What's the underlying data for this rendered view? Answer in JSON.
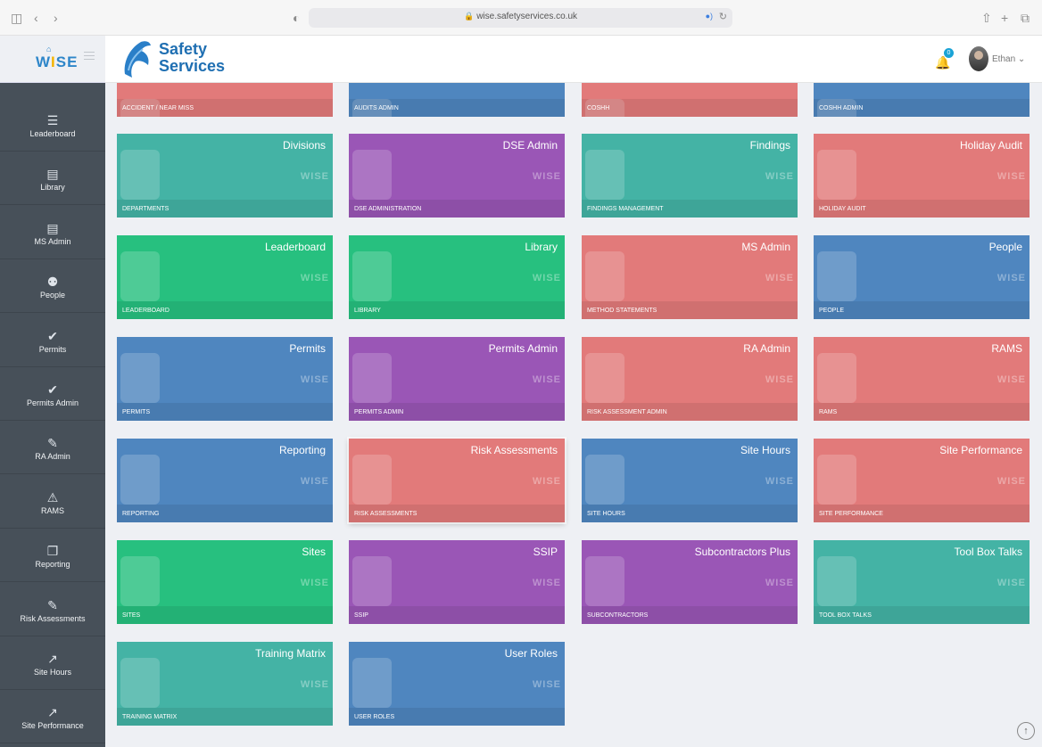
{
  "browser": {
    "url": "wise.safetyservices.co.uk"
  },
  "app": {
    "logo_text": "WISE",
    "brand_line1": "Safety",
    "brand_line2": "Services"
  },
  "header": {
    "notification_count": "0",
    "user_name": "Ethan"
  },
  "sidebar": {
    "items": [
      {
        "label": "Leaderboard",
        "icon": "list-icon"
      },
      {
        "label": "Library",
        "icon": "book-icon"
      },
      {
        "label": "MS Admin",
        "icon": "document-icon"
      },
      {
        "label": "People",
        "icon": "people-icon"
      },
      {
        "label": "Permits",
        "icon": "check-icon"
      },
      {
        "label": "Permits Admin",
        "icon": "check-icon"
      },
      {
        "label": "RA Admin",
        "icon": "pencil-icon"
      },
      {
        "label": "RAMS",
        "icon": "warning-icon"
      },
      {
        "label": "Reporting",
        "icon": "file-icon"
      },
      {
        "label": "Risk Assessments",
        "icon": "pencil-icon"
      },
      {
        "label": "Site Hours",
        "icon": "line-chart-icon"
      },
      {
        "label": "Site Performance",
        "icon": "line-chart-icon"
      }
    ]
  },
  "tiles": [
    {
      "title": "",
      "sub": "ACCIDENT / NEAR MISS",
      "color": "#e27a7a"
    },
    {
      "title": "",
      "sub": "AUDITS ADMIN",
      "color": "#4f86bf"
    },
    {
      "title": "",
      "sub": "COSHH",
      "color": "#e27a7a"
    },
    {
      "title": "",
      "sub": "COSHH ADMIN",
      "color": "#4f86bf"
    },
    {
      "title": "Divisions",
      "sub": "DEPARTMENTS",
      "color": "#44b3a5"
    },
    {
      "title": "DSE Admin",
      "sub": "DSE ADMINISTRATION",
      "color": "#9a56b6"
    },
    {
      "title": "Findings",
      "sub": "FINDINGS MANAGEMENT",
      "color": "#44b3a5"
    },
    {
      "title": "Holiday Audit",
      "sub": "HOLIDAY AUDIT",
      "color": "#e27a7a"
    },
    {
      "title": "Leaderboard",
      "sub": "LEADERBOARD",
      "color": "#27c07f"
    },
    {
      "title": "Library",
      "sub": "LIBRARY",
      "color": "#27c07f"
    },
    {
      "title": "MS Admin",
      "sub": "METHOD STATEMENTS",
      "color": "#e27a7a"
    },
    {
      "title": "People",
      "sub": "PEOPLE",
      "color": "#4f86bf"
    },
    {
      "title": "Permits",
      "sub": "PERMITS",
      "color": "#4f86bf"
    },
    {
      "title": "Permits Admin",
      "sub": "PERMITS ADMIN",
      "color": "#9a56b6"
    },
    {
      "title": "RA Admin",
      "sub": "RISK ASSESSMENT ADMIN",
      "color": "#e27a7a"
    },
    {
      "title": "RAMS",
      "sub": "RAMS",
      "color": "#e27a7a"
    },
    {
      "title": "Reporting",
      "sub": "REPORTING",
      "color": "#4f86bf"
    },
    {
      "title": "Risk Assessments",
      "sub": "RISK ASSESSMENTS",
      "color": "#e27a7a"
    },
    {
      "title": "Site Hours",
      "sub": "SITE HOURS",
      "color": "#4f86bf"
    },
    {
      "title": "Site Performance",
      "sub": "SITE PERFORMANCE",
      "color": "#e27a7a"
    },
    {
      "title": "Sites",
      "sub": "SITES",
      "color": "#27c07f"
    },
    {
      "title": "SSIP",
      "sub": "SSIP",
      "color": "#9a56b6"
    },
    {
      "title": "Subcontractors Plus",
      "sub": "SUBCONTRACTORS",
      "color": "#9a56b6"
    },
    {
      "title": "Tool Box Talks",
      "sub": "TOOL BOX TALKS",
      "color": "#44b3a5"
    },
    {
      "title": "Training Matrix",
      "sub": "TRAINING MATRIX",
      "color": "#44b3a5"
    },
    {
      "title": "User Roles",
      "sub": "USER ROLES",
      "color": "#4f86bf"
    }
  ]
}
